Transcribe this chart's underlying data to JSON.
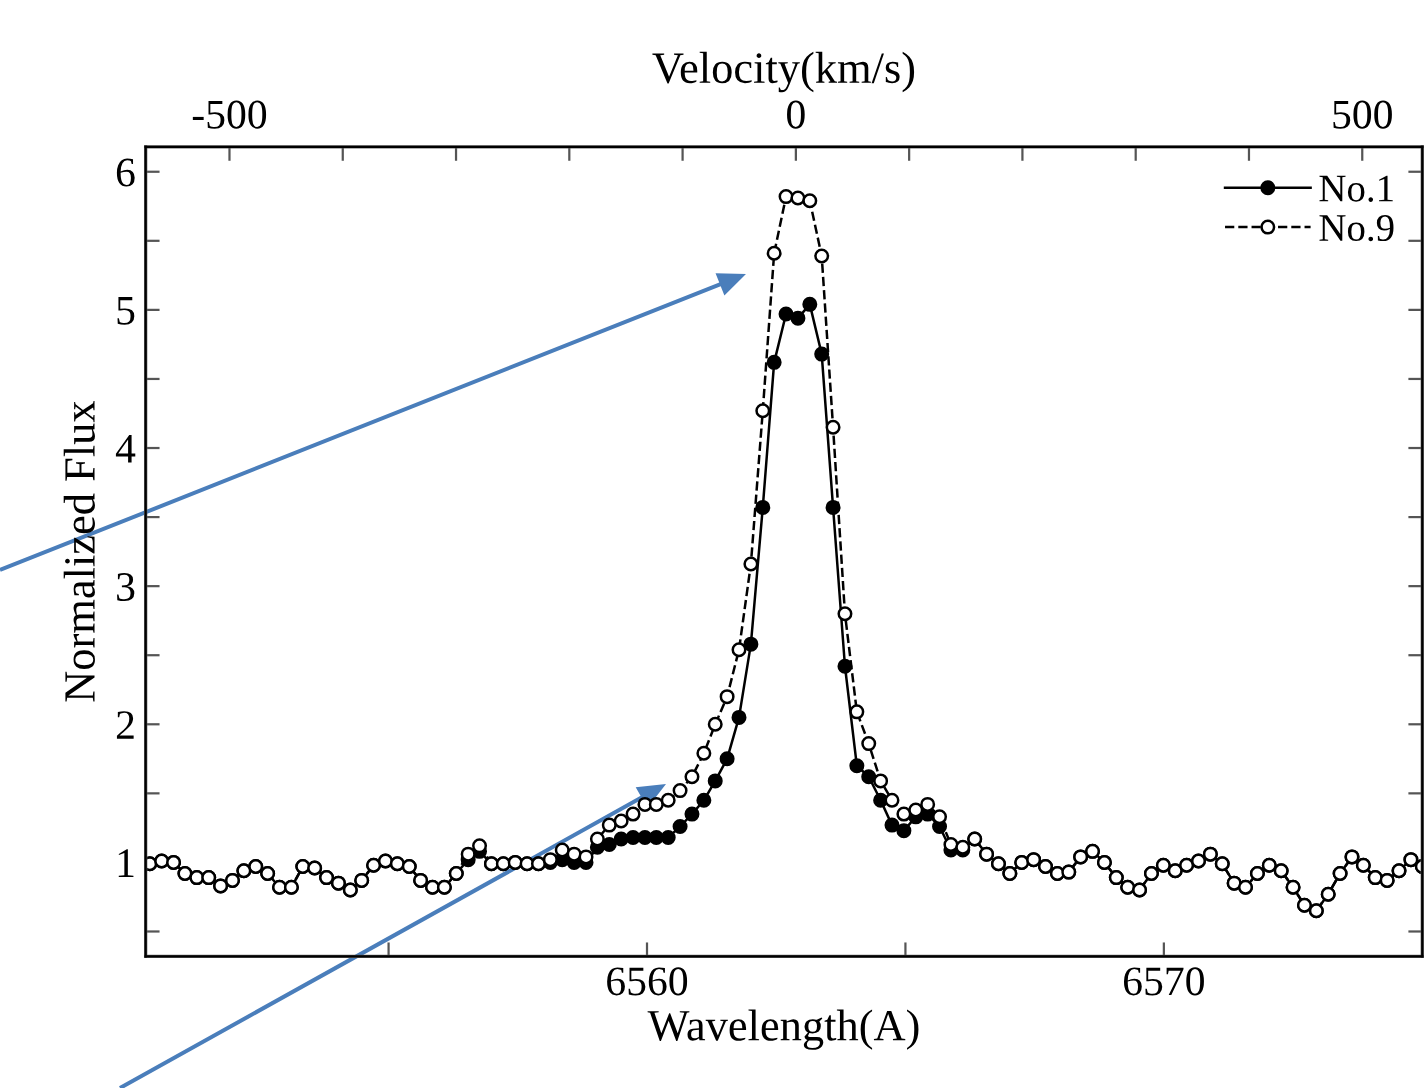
{
  "chart_data": {
    "type": "line",
    "xlabel": "Wavelength(A)",
    "ylabel": "Normalized Flux",
    "x2label": "Velocity(km/s)",
    "x": [
      6550.38,
      6550.61,
      6550.84,
      6551.06,
      6551.29,
      6551.52,
      6551.75,
      6551.98,
      6552.2,
      6552.43,
      6552.66,
      6552.89,
      6553.12,
      6553.34,
      6553.57,
      6553.8,
      6554.03,
      6554.26,
      6554.48,
      6554.71,
      6554.94,
      6555.17,
      6555.4,
      6555.62,
      6555.85,
      6556.08,
      6556.31,
      6556.54,
      6556.76,
      6556.99,
      6557.22,
      6557.45,
      6557.68,
      6557.9,
      6558.13,
      6558.36,
      6558.59,
      6558.82,
      6559.04,
      6559.27,
      6559.5,
      6559.73,
      6559.96,
      6560.18,
      6560.41,
      6560.64,
      6560.87,
      6561.1,
      6561.32,
      6561.55,
      6561.78,
      6562.01,
      6562.24,
      6562.46,
      6562.69,
      6562.92,
      6563.15,
      6563.38,
      6563.6,
      6563.83,
      6564.06,
      6564.29,
      6564.52,
      6564.74,
      6564.97,
      6565.2,
      6565.43,
      6565.66,
      6565.88,
      6566.11,
      6566.34,
      6566.57,
      6566.8,
      6567.02,
      6567.25,
      6567.48,
      6567.71,
      6567.94,
      6568.16,
      6568.39,
      6568.62,
      6568.85,
      6569.08,
      6569.3,
      6569.53,
      6569.76,
      6569.99,
      6570.22,
      6570.44,
      6570.67,
      6570.9,
      6571.13,
      6571.36,
      6571.58,
      6571.81,
      6572.04,
      6572.27,
      6572.5,
      6572.72,
      6572.95,
      6573.18,
      6573.41,
      6573.64,
      6573.86,
      6574.09,
      6574.32,
      6574.55,
      6574.78,
      6575.0
    ],
    "series": [
      {
        "name": "No.1",
        "color": "#000000",
        "line_style": "solid",
        "values": [
          0.99,
          1.01,
          1.0,
          0.92,
          0.89,
          0.89,
          0.83,
          0.87,
          0.94,
          0.97,
          0.92,
          0.82,
          0.82,
          0.97,
          0.96,
          0.89,
          0.85,
          0.8,
          0.87,
          0.98,
          1.01,
          0.99,
          0.97,
          0.87,
          0.82,
          0.82,
          0.92,
          1.02,
          1.08,
          0.99,
          0.99,
          1.0,
          0.99,
          0.99,
          1.0,
          1.02,
          1.0,
          1.0,
          1.11,
          1.13,
          1.17,
          1.18,
          1.18,
          1.18,
          1.18,
          1.26,
          1.35,
          1.45,
          1.59,
          1.75,
          2.05,
          2.58,
          3.57,
          4.62,
          4.97,
          4.94,
          5.04,
          4.68,
          3.57,
          2.42,
          1.7,
          1.62,
          1.45,
          1.27,
          1.23,
          1.33,
          1.35,
          1.26,
          1.09,
          1.09,
          1.17,
          1.06,
          0.99,
          0.92,
          1.0,
          1.02,
          0.97,
          0.92,
          0.93,
          1.04,
          1.08,
          1.0,
          0.89,
          0.82,
          0.8,
          0.92,
          0.98,
          0.94,
          0.98,
          1.01,
          1.06,
          0.99,
          0.85,
          0.82,
          0.92,
          0.98,
          0.94,
          0.82,
          0.69,
          0.65,
          0.77,
          0.92,
          1.04,
          0.98,
          0.89,
          0.87,
          0.94,
          1.02,
          0.97
        ]
      },
      {
        "name": "No.9",
        "color": "#000000",
        "line_style": "dashed",
        "values": [
          0.99,
          1.01,
          1.0,
          0.92,
          0.89,
          0.89,
          0.83,
          0.87,
          0.94,
          0.97,
          0.92,
          0.82,
          0.82,
          0.97,
          0.96,
          0.89,
          0.85,
          0.8,
          0.87,
          0.98,
          1.01,
          0.99,
          0.97,
          0.87,
          0.82,
          0.82,
          0.92,
          1.06,
          1.12,
          0.99,
          0.99,
          1.0,
          0.99,
          0.99,
          1.02,
          1.09,
          1.06,
          1.04,
          1.17,
          1.27,
          1.3,
          1.35,
          1.42,
          1.42,
          1.45,
          1.52,
          1.62,
          1.79,
          2.0,
          2.2,
          2.54,
          3.16,
          4.27,
          5.41,
          5.82,
          5.81,
          5.79,
          5.39,
          4.15,
          2.8,
          2.09,
          1.86,
          1.59,
          1.45,
          1.35,
          1.38,
          1.42,
          1.33,
          1.13,
          1.11,
          1.17,
          1.06,
          0.99,
          0.92,
          1.0,
          1.02,
          0.97,
          0.92,
          0.93,
          1.04,
          1.08,
          1.0,
          0.89,
          0.82,
          0.8,
          0.92,
          0.98,
          0.94,
          0.98,
          1.01,
          1.06,
          0.99,
          0.85,
          0.82,
          0.92,
          0.98,
          0.94,
          0.82,
          0.69,
          0.65,
          0.77,
          0.92,
          1.04,
          0.98,
          0.89,
          0.87,
          0.94,
          1.02,
          0.97
        ]
      }
    ],
    "marker": "circle",
    "xlim": [
      6550.3,
      6575.0
    ],
    "xticks": [
      {
        "value": 6555,
        "label": null
      },
      6560,
      {
        "value": 6565,
        "label": null
      },
      6570
    ],
    "x2lim": [
      -574,
      553
    ],
    "x2ticks": [
      -500,
      {
        "value": -400,
        "label": null
      },
      {
        "value": -300,
        "label": null
      },
      {
        "value": -200,
        "label": null
      },
      {
        "value": -100,
        "label": null
      },
      0,
      {
        "value": 100,
        "label": null
      },
      {
        "value": 200,
        "label": null
      },
      {
        "value": 300,
        "label": null
      },
      {
        "value": 400,
        "label": null
      },
      500
    ],
    "ylim": [
      0.32,
      6.18
    ],
    "yticks": [
      {
        "value": 0.5,
        "label": null
      },
      1,
      {
        "value": 1.5,
        "label": null
      },
      2,
      {
        "value": 2.5,
        "label": null
      },
      3,
      {
        "value": 3.5,
        "label": null
      },
      4,
      {
        "value": 4.5,
        "label": null
      },
      5,
      {
        "value": 5.5,
        "label": null
      },
      6
    ],
    "grid": false,
    "legend": "top right"
  }
}
